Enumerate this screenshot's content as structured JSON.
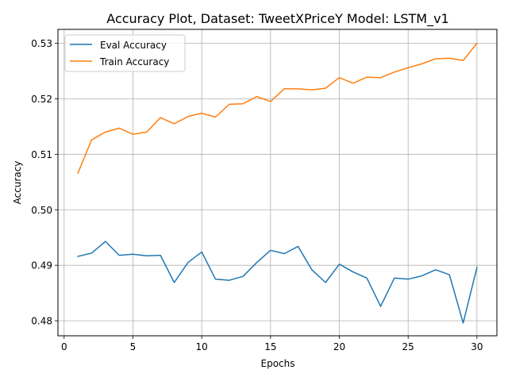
{
  "chart_data": {
    "type": "line",
    "title": "Accuracy Plot, Dataset: TweetXPriceY Model: LSTM_v1",
    "xlabel": "Epochs",
    "ylabel": "Accuracy",
    "xlim": [
      -0.45,
      31.45
    ],
    "ylim": [
      0.4773,
      0.5325
    ],
    "xticks": [
      0,
      5,
      10,
      15,
      20,
      25,
      30
    ],
    "xtick_labels": [
      "0",
      "5",
      "10",
      "15",
      "20",
      "25",
      "30"
    ],
    "yticks": [
      0.48,
      0.49,
      0.5,
      0.51,
      0.52,
      0.53
    ],
    "ytick_labels": [
      "0.48",
      "0.49",
      "0.50",
      "0.51",
      "0.52",
      "0.53"
    ],
    "grid": true,
    "legend_position": "upper-left",
    "x": [
      1,
      2,
      3,
      4,
      5,
      6,
      7,
      8,
      9,
      10,
      11,
      12,
      13,
      14,
      15,
      16,
      17,
      18,
      19,
      20,
      21,
      22,
      23,
      24,
      25,
      26,
      27,
      28,
      29,
      30
    ],
    "series": [
      {
        "name": "Eval Accuracy",
        "color": "#1f77b4",
        "values": [
          0.4916,
          0.4922,
          0.4943,
          0.4918,
          0.492,
          0.4917,
          0.4918,
          0.4869,
          0.4905,
          0.4924,
          0.4875,
          0.4873,
          0.488,
          0.4905,
          0.4927,
          0.4921,
          0.4934,
          0.4892,
          0.4869,
          0.4902,
          0.4888,
          0.4877,
          0.4826,
          0.4877,
          0.4875,
          0.4881,
          0.4892,
          0.4883,
          0.4796,
          0.4896
        ]
      },
      {
        "name": "Train Accuracy",
        "color": "#ff7f0e",
        "values": [
          0.5066,
          0.5126,
          0.514,
          0.5147,
          0.5136,
          0.514,
          0.5166,
          0.5155,
          0.5168,
          0.5174,
          0.5167,
          0.519,
          0.5191,
          0.5204,
          0.5195,
          0.5218,
          0.5218,
          0.5216,
          0.5219,
          0.5238,
          0.5228,
          0.5239,
          0.5238,
          0.5248,
          0.5256,
          0.5263,
          0.5272,
          0.5273,
          0.5269,
          0.53
        ]
      }
    ]
  }
}
